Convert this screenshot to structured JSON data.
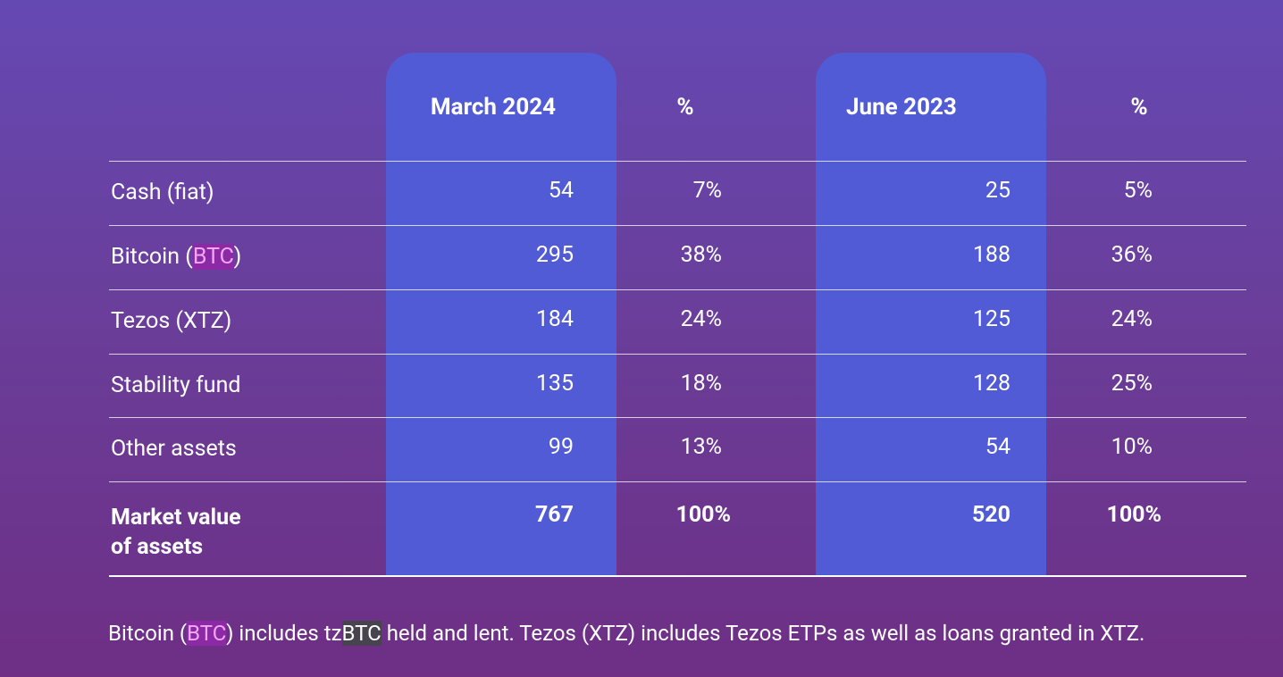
{
  "table": {
    "columns": [
      "March 2024",
      "%",
      "June 2023",
      "%"
    ],
    "rows": [
      {
        "label": [
          "Cash (fiat)"
        ],
        "cells": [
          "54",
          "7%",
          "25",
          "5%"
        ]
      },
      {
        "label": [
          "Bitcoin (",
          "BTC",
          ")"
        ],
        "cells": [
          "295",
          "38%",
          "188",
          "36%"
        ]
      },
      {
        "label": [
          "Tezos (XTZ)"
        ],
        "cells": [
          "184",
          "24%",
          "125",
          "24%"
        ]
      },
      {
        "label": [
          "Stability fund"
        ],
        "cells": [
          "135",
          "18%",
          "128",
          "25%"
        ]
      },
      {
        "label": [
          "Other assets"
        ],
        "cells": [
          "99",
          "13%",
          "54",
          "10%"
        ]
      }
    ],
    "total": {
      "label_lines": [
        "Market value",
        "of assets"
      ],
      "cells": [
        "767",
        "100%",
        "520",
        "100%"
      ]
    }
  },
  "footnote": [
    "Bitcoin (",
    "BTC",
    ") includes tz",
    "BTC",
    " held and lent. Tezos (XTZ) includes Tezos ETPs as well as loans granted in XTZ."
  ]
}
